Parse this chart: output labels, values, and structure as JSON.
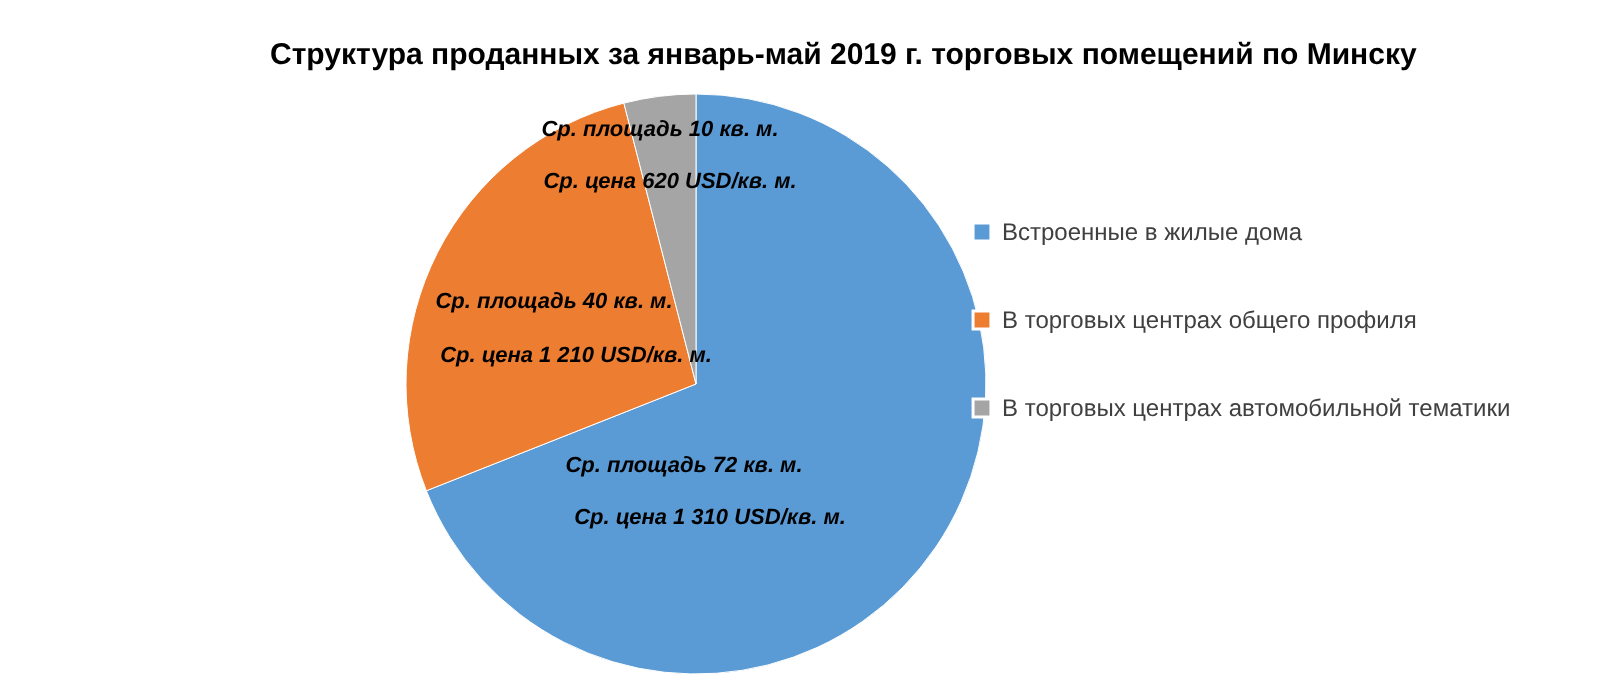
{
  "chart_data": {
    "type": "pie",
    "title": "Структура проданных за январь-май 2019 г. торговых помещений по Минску",
    "categories": [
      "Встроенные в жилые дома",
      "В торговых центрах общего профиля",
      "В торговых центрах автомобильной тематики"
    ],
    "values": [
      69,
      27,
      4
    ],
    "colors": [
      "#5b9bd5",
      "#ed7d31",
      "#a5a5a5"
    ],
    "legend": "right",
    "annotations": [
      "Ср. площадь 10 кв. м.",
      "Ср. цена 620 USD/кв. м.",
      "Ср. площадь 40 кв. м.",
      "Ср. цена 1 210 USD/кв. м.",
      "Ср. площадь 72 кв. м.",
      "Ср. цена 1 310 USD/кв. м."
    ]
  }
}
